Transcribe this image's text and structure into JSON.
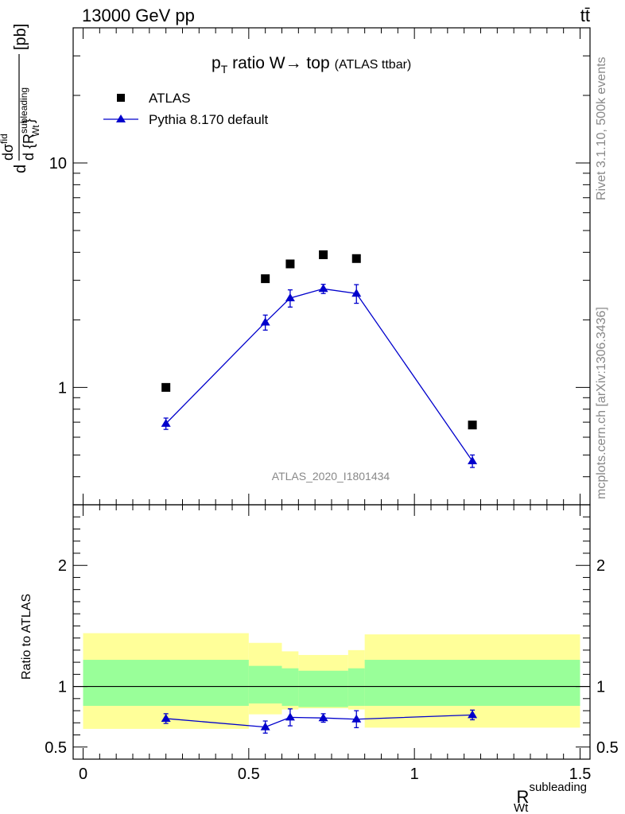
{
  "header": {
    "left": "13000 GeV pp",
    "right": "tt̄"
  },
  "side_labels": {
    "rivet": "Rivet 3.1.10,  500k events",
    "mcplots": "mcplots.cern.ch [arXiv:1306.3436]"
  },
  "watermark": "ATLAS_2020_I1801434",
  "title": {
    "main": "p",
    "sub": "T",
    "rest": " ratio W→ top",
    "small": "(ATLAS ttbar)"
  },
  "y_label_top": {
    "d": "d",
    "numerator": "dσ",
    "numerator_sup": "fid",
    "denominator": "d {R",
    "denominator_sup": "subleading",
    "denominator_sub": "Wt",
    "denominator_close": "}",
    "unit": "[pb]"
  },
  "y_label_bottom": "Ratio to ATLAS",
  "x_label": {
    "base": "R",
    "sup": "subleading",
    "sub": "Wt"
  },
  "legend": {
    "data": "ATLAS",
    "mc": "Pythia 8.170 default"
  },
  "colors": {
    "mc": "#0000cc",
    "data": "#000000",
    "band_inner": "#99ff99",
    "band_outer": "#ffff99"
  },
  "chart_data": [
    {
      "type": "scatter",
      "panel": "main",
      "yscale": "log",
      "xlim": [
        -0.03,
        1.53
      ],
      "ylim": [
        0.3,
        40
      ],
      "y_tick_labels": [
        "1",
        "10"
      ],
      "bins": [
        [
          0.0,
          0.5
        ],
        [
          0.5,
          0.6
        ],
        [
          0.6,
          0.65
        ],
        [
          0.65,
          0.8
        ],
        [
          0.8,
          0.85
        ],
        [
          0.85,
          1.5
        ]
      ],
      "series": [
        {
          "name": "ATLAS",
          "x": [
            0.25,
            0.55,
            0.625,
            0.725,
            0.825,
            1.175
          ],
          "y": [
            1.0,
            3.05,
            3.55,
            3.9,
            3.75,
            0.68
          ]
        },
        {
          "name": "Pythia 8.170 default",
          "x": [
            0.25,
            0.55,
            0.625,
            0.725,
            0.825,
            1.175
          ],
          "y": [
            0.69,
            1.95,
            2.5,
            2.75,
            2.62,
            0.47
          ],
          "yerr": [
            0.04,
            0.15,
            0.22,
            0.13,
            0.25,
            0.03
          ]
        }
      ]
    },
    {
      "type": "scatter",
      "panel": "ratio",
      "xlim": [
        -0.03,
        1.53
      ],
      "ylim": [
        0.4,
        2.5
      ],
      "x_tick_labels": [
        "0",
        "0.5",
        "1",
        "1.5"
      ],
      "y_tick_labels": [
        "0.5",
        "1",
        "2"
      ],
      "bins": [
        [
          0.0,
          0.5
        ],
        [
          0.5,
          0.6
        ],
        [
          0.6,
          0.65
        ],
        [
          0.65,
          0.8
        ],
        [
          0.8,
          0.85
        ],
        [
          0.85,
          1.5
        ]
      ],
      "band_inner": [
        [
          0.84,
          1.22
        ],
        [
          0.86,
          1.17
        ],
        [
          0.84,
          1.15
        ],
        [
          0.83,
          1.13
        ],
        [
          0.84,
          1.15
        ],
        [
          0.84,
          1.22
        ]
      ],
      "band_outer": [
        [
          0.65,
          1.44
        ],
        [
          0.77,
          1.36
        ],
        [
          0.81,
          1.29
        ],
        [
          0.82,
          1.26
        ],
        [
          0.81,
          1.3
        ],
        [
          0.66,
          1.43
        ]
      ],
      "series": [
        {
          "name": "Pythia 8.170 default",
          "x": [
            0.25,
            0.55,
            0.625,
            0.725,
            0.825,
            1.175
          ],
          "y": [
            0.735,
            0.665,
            0.745,
            0.74,
            0.73,
            0.765
          ],
          "yerr": [
            0.04,
            0.05,
            0.07,
            0.035,
            0.07,
            0.04
          ]
        }
      ]
    }
  ]
}
